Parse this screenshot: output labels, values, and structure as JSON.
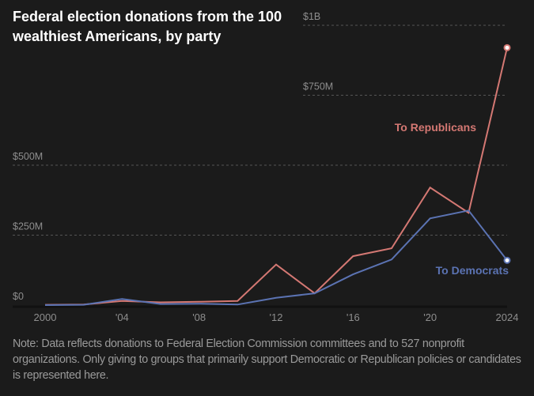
{
  "title": "Federal election donations from the 100 wealthiest Americans, by party",
  "note": "Note: Data reflects donations to Federal Election Commission committees and to 527 nonprofit organizations. Only giving to groups that primarily support Democratic or Republican policies or candidates is represented here.",
  "colors": {
    "background": "#1b1b1b",
    "republicans": "#d47873",
    "democrats": "#5b73b3",
    "gridline": "#555555",
    "axis_text": "#8e8e8e"
  },
  "chart_data": {
    "type": "line",
    "title": "Federal election donations from the 100 wealthiest Americans, by party",
    "xlabel": "",
    "ylabel": "",
    "x": [
      2000,
      2002,
      2004,
      2006,
      2008,
      2010,
      2012,
      2014,
      2016,
      2018,
      2020,
      2022,
      2024
    ],
    "x_ticks": [
      2000,
      2004,
      2008,
      2012,
      2016,
      2020,
      2024
    ],
    "x_tick_labels": [
      "2000",
      "'04",
      "'08",
      "'12",
      "'16",
      "'20",
      "2024"
    ],
    "y_ticks": [
      0,
      250,
      500,
      750,
      1000
    ],
    "y_tick_labels": [
      "$0",
      "$250M",
      "$500M",
      "$750M",
      "$1B"
    ],
    "ylim": [
      0,
      1000
    ],
    "xlim": [
      2000,
      2024
    ],
    "units": "millions of dollars",
    "grid": true,
    "series": [
      {
        "name": "To Republicans",
        "color": "#d47873",
        "values": [
          1,
          2,
          15,
          10,
          12,
          15,
          145,
          42,
          175,
          203,
          420,
          330,
          920
        ]
      },
      {
        "name": "To Democrats",
        "color": "#5b73b3",
        "values": [
          0,
          1,
          22,
          4,
          5,
          2,
          26,
          42,
          110,
          163,
          310,
          338,
          160
        ]
      }
    ]
  }
}
